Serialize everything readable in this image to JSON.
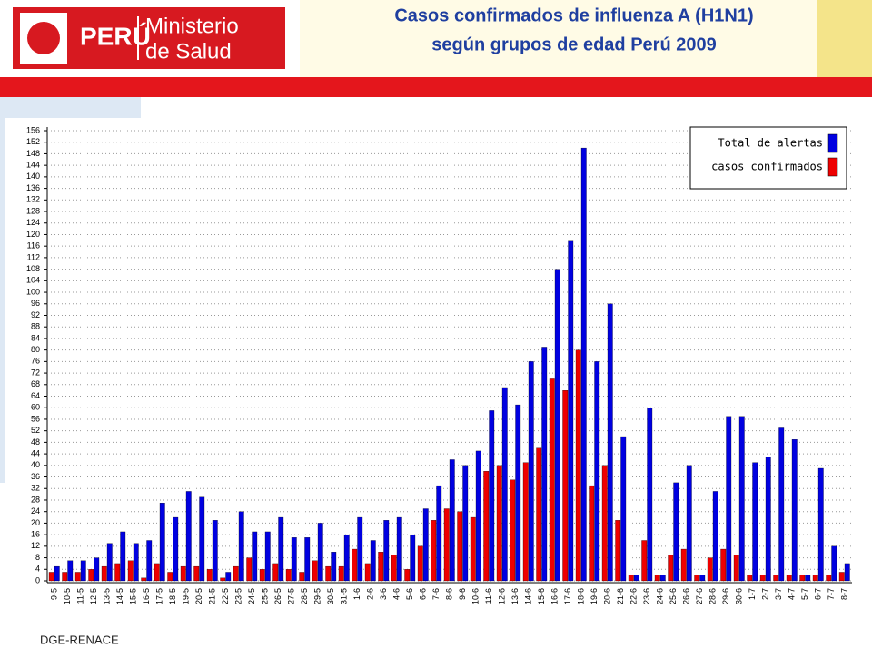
{
  "header": {
    "logo_country": "PERÚ",
    "logo_line1": "Ministerio",
    "logo_line2": "de Salud"
  },
  "chart_data": {
    "type": "bar",
    "title": [
      "Casos confirmados de influenza A (H1N1)",
      "según grupos de edad Perú 2009"
    ],
    "categories": [
      "9-5",
      "10-5",
      "11-5",
      "12-5",
      "13-5",
      "14-5",
      "15-5",
      "16-5",
      "17-5",
      "18-5",
      "19-5",
      "20-5",
      "21-5",
      "22-5",
      "23-5",
      "24-5",
      "25-5",
      "26-5",
      "27-5",
      "28-5",
      "29-5",
      "30-5",
      "31-5",
      "1-6",
      "2-6",
      "3-6",
      "4-6",
      "5-6",
      "6-6",
      "7-6",
      "8-6",
      "9-6",
      "10-6",
      "11-6",
      "12-6",
      "13-6",
      "14-6",
      "15-6",
      "16-6",
      "17-6",
      "18-6",
      "19-6",
      "20-6",
      "21-6",
      "22-6",
      "23-6",
      "24-6",
      "25-6",
      "26-6",
      "27-6",
      "28-6",
      "29-6",
      "30-6",
      "1-7",
      "2-7",
      "3-7",
      "4-7",
      "5-7",
      "6-7",
      "7-7",
      "8-7"
    ],
    "series": [
      {
        "name": "Total de alertas",
        "color": "#0000e0",
        "values": [
          5,
          7,
          7,
          8,
          13,
          17,
          13,
          14,
          27,
          22,
          31,
          29,
          21,
          3,
          24,
          17,
          17,
          22,
          15,
          15,
          20,
          10,
          16,
          22,
          14,
          21,
          22,
          16,
          25,
          33,
          42,
          40,
          45,
          59,
          67,
          61,
          76,
          81,
          108,
          118,
          150,
          76,
          96,
          50,
          2,
          60,
          2,
          34,
          40,
          2,
          31,
          57,
          57,
          41,
          43,
          53,
          49,
          2,
          39,
          12,
          6
        ]
      },
      {
        "name": "casos confirmados",
        "color": "#ee0000",
        "values": [
          3,
          3,
          3,
          4,
          5,
          6,
          7,
          1,
          6,
          3,
          5,
          5,
          4,
          1,
          5,
          8,
          4,
          6,
          4,
          3,
          7,
          5,
          5,
          11,
          6,
          10,
          9,
          4,
          12,
          21,
          25,
          24,
          22,
          38,
          40,
          35,
          41,
          46,
          70,
          66,
          80,
          33,
          40,
          21,
          2,
          14,
          2,
          9,
          11,
          2,
          8,
          11,
          9,
          2,
          2,
          2,
          2,
          2,
          2,
          2,
          3
        ]
      }
    ],
    "ylim": [
      0,
      156
    ],
    "yticks": [
      0,
      4,
      8,
      12,
      16,
      20,
      24,
      28,
      32,
      36,
      40,
      44,
      48,
      52,
      56,
      60,
      64,
      68,
      72,
      76,
      80,
      84,
      88,
      92,
      96,
      100,
      104,
      108,
      112,
      116,
      120,
      124,
      128,
      132,
      136,
      140,
      144,
      148,
      152,
      156
    ],
    "grid": true,
    "legend": "top-right"
  },
  "footer": "DGE-RENACE"
}
